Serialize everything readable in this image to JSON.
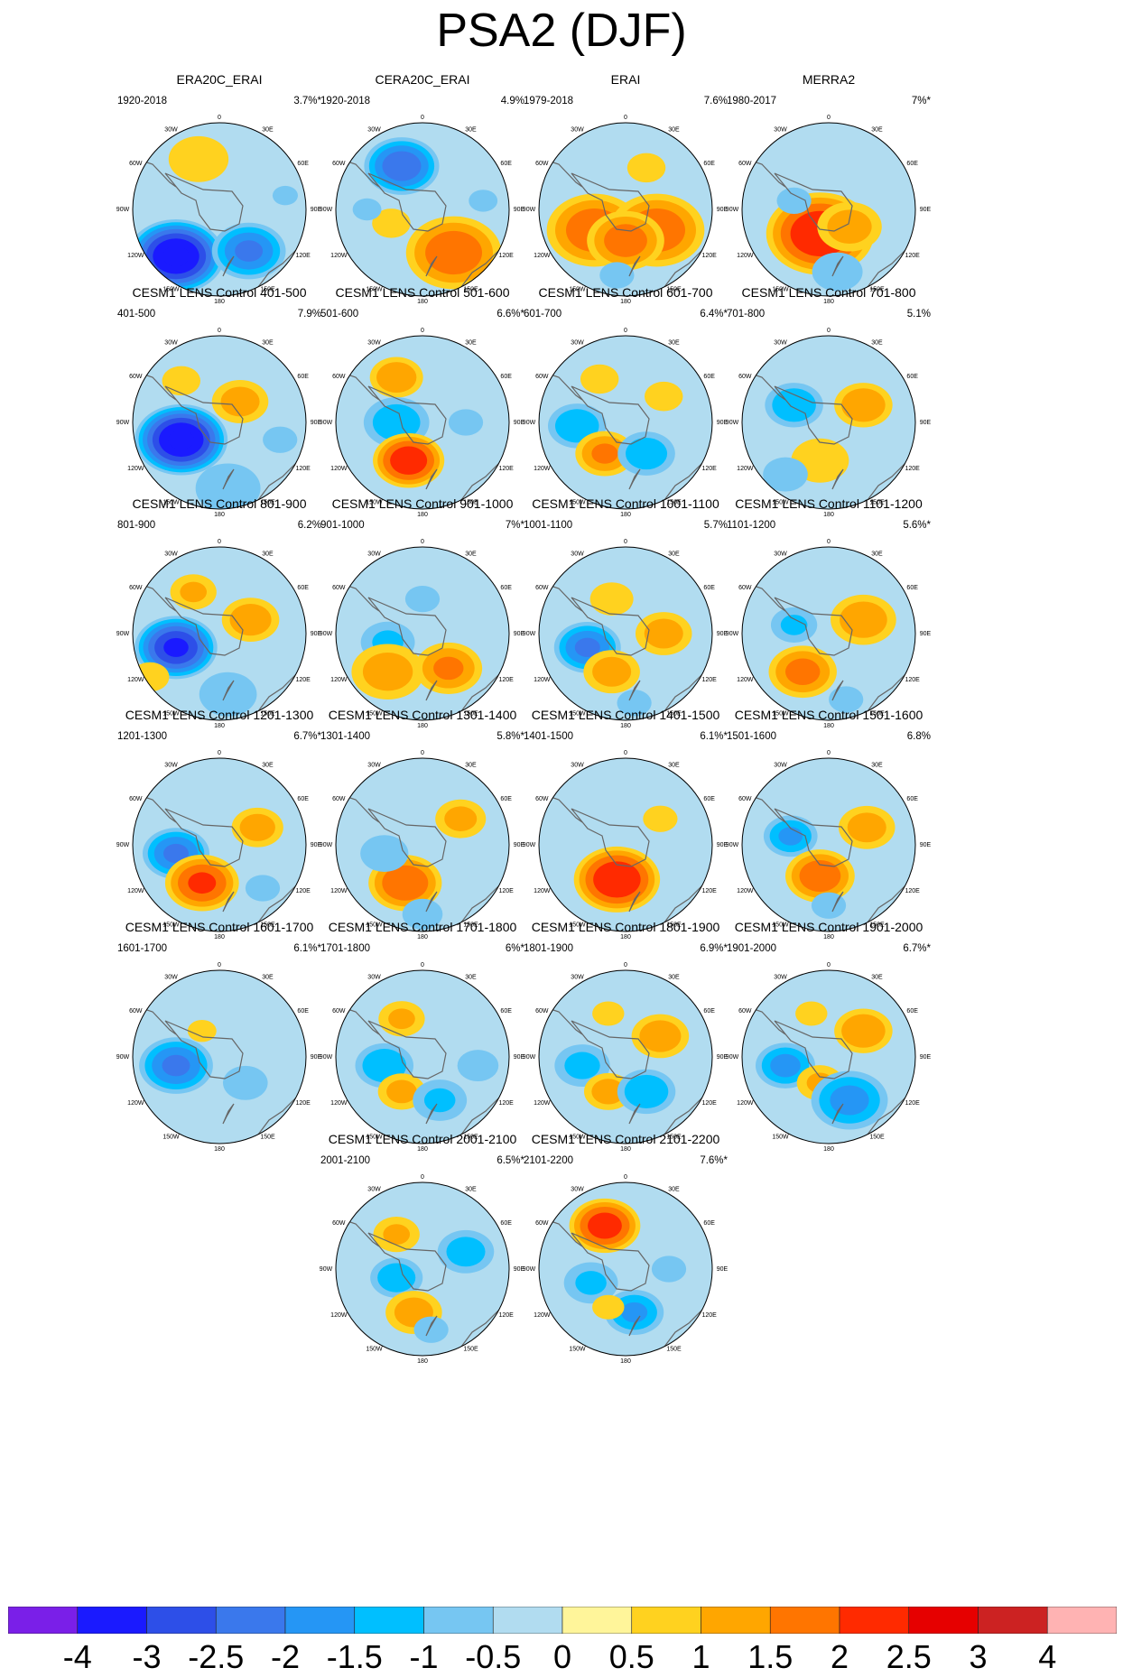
{
  "chart_data": {
    "type": "heatmap",
    "title": "PSA2 (DJF)",
    "projection": "south-polar-stereographic",
    "longitude_labels": [
      "0",
      "30E",
      "60E",
      "90E",
      "120E",
      "150E",
      "180",
      "150W",
      "120W",
      "90W",
      "60W",
      "30W"
    ],
    "colorbar": {
      "levels": [
        "-4",
        "-3",
        "-2.5",
        "-2",
        "-1.5",
        "-1",
        "-0.5",
        "0",
        "0.5",
        "1",
        "1.5",
        "2",
        "2.5",
        "3",
        "4"
      ],
      "colors": [
        "#7a1fe8",
        "#1a1aff",
        "#2d4fe8",
        "#3a78ec",
        "#2596f5",
        "#00bfff",
        "#76c6f2",
        "#b1dcf0",
        "#fff59a",
        "#ffd21f",
        "#ffa600",
        "#ff7500",
        "#ff2a00",
        "#e60000",
        "#cc2222",
        "#ffb3b3"
      ]
    },
    "panels": [
      {
        "title": "ERA20C_ERAI",
        "period": "1920-2018",
        "variance": "3.7%*",
        "centers": [
          [
            0.38,
            0.21,
            0.4,
            0.9
          ],
          [
            0.72,
            0.43,
            0.22,
            0.4
          ],
          [
            0.25,
            0.77,
            0.52,
            -3.5
          ],
          [
            0.67,
            0.74,
            0.42,
            -2.0
          ],
          [
            0.88,
            0.42,
            0.22,
            -0.5
          ]
        ]
      },
      {
        "title": "CERA20C_ERAI",
        "period": "1920-2018",
        "variance": "4.9%",
        "centers": [
          [
            0.38,
            0.25,
            0.42,
            -2.3
          ],
          [
            0.68,
            0.75,
            0.55,
            1.8
          ],
          [
            0.32,
            0.58,
            0.3,
            0.6
          ],
          [
            0.85,
            0.45,
            0.25,
            -0.5
          ],
          [
            0.18,
            0.5,
            0.25,
            -0.5
          ]
        ]
      },
      {
        "title": "ERAI",
        "period": "1979-2018",
        "variance": "7.6%",
        "centers": [
          [
            0.32,
            0.62,
            0.55,
            1.8
          ],
          [
            0.68,
            0.62,
            0.55,
            1.8
          ],
          [
            0.5,
            0.68,
            0.45,
            1.7
          ],
          [
            0.5,
            0.4,
            0.3,
            -0.4
          ],
          [
            0.45,
            0.88,
            0.3,
            -0.5
          ],
          [
            0.62,
            0.26,
            0.3,
            0.6
          ]
        ]
      },
      {
        "title": "MERRA2",
        "period": "1980-2017",
        "variance": "7%*",
        "centers": [
          [
            0.45,
            0.64,
            0.6,
            2.4
          ],
          [
            0.62,
            0.6,
            0.4,
            1.2
          ],
          [
            0.55,
            0.86,
            0.35,
            -0.8
          ],
          [
            0.3,
            0.45,
            0.3,
            -0.5
          ],
          [
            0.72,
            0.3,
            0.3,
            -0.4
          ]
        ]
      },
      {
        "title": "CESM1 LENS Control 401-500",
        "period": "401-500",
        "variance": "7.9%",
        "centers": [
          [
            0.28,
            0.6,
            0.5,
            -3.5
          ],
          [
            0.62,
            0.38,
            0.35,
            1.2
          ],
          [
            0.28,
            0.26,
            0.3,
            0.6
          ],
          [
            0.55,
            0.88,
            0.45,
            -0.8
          ],
          [
            0.85,
            0.6,
            0.3,
            -0.5
          ]
        ]
      },
      {
        "title": "CESM1 LENS Control 501-600",
        "period": "501-600",
        "variance": "6.6%*",
        "centers": [
          [
            0.35,
            0.24,
            0.32,
            1.4
          ],
          [
            0.35,
            0.5,
            0.4,
            -1.3
          ],
          [
            0.42,
            0.72,
            0.4,
            2.3
          ],
          [
            0.75,
            0.5,
            0.3,
            -0.5
          ],
          [
            0.65,
            0.85,
            0.3,
            -0.4
          ]
        ]
      },
      {
        "title": "CESM1 LENS Control 601-700",
        "period": "601-700",
        "variance": "6.4%*",
        "centers": [
          [
            0.22,
            0.52,
            0.35,
            -1.4
          ],
          [
            0.38,
            0.68,
            0.35,
            1.5
          ],
          [
            0.62,
            0.68,
            0.35,
            -1.3
          ],
          [
            0.35,
            0.25,
            0.3,
            0.6
          ],
          [
            0.72,
            0.35,
            0.3,
            0.6
          ]
        ]
      },
      {
        "title": "CESM1 LENS Control 701-800",
        "period": "701-800",
        "variance": "5.1%",
        "centers": [
          [
            0.3,
            0.4,
            0.35,
            -1.4
          ],
          [
            0.7,
            0.4,
            0.35,
            1.4
          ],
          [
            0.45,
            0.72,
            0.4,
            0.8
          ],
          [
            0.25,
            0.8,
            0.35,
            -0.6
          ]
        ]
      },
      {
        "title": "CESM1 LENS Control 801-900",
        "period": "801-900",
        "variance": "6.2%",
        "centers": [
          [
            0.25,
            0.58,
            0.45,
            -3.0
          ],
          [
            0.68,
            0.42,
            0.35,
            1.3
          ],
          [
            0.35,
            0.26,
            0.3,
            1.0
          ],
          [
            0.55,
            0.85,
            0.45,
            -0.6
          ],
          [
            0.1,
            0.75,
            0.3,
            0.6
          ]
        ]
      },
      {
        "title": "CESM1 LENS Control 901-1000",
        "period": "901-1000",
        "variance": "7%*",
        "centers": [
          [
            0.3,
            0.55,
            0.35,
            -1.0
          ],
          [
            0.3,
            0.72,
            0.45,
            1.2
          ],
          [
            0.65,
            0.7,
            0.4,
            1.5
          ],
          [
            0.5,
            0.3,
            0.3,
            -0.5
          ]
        ]
      },
      {
        "title": "CESM1 LENS Control 1001-1100",
        "period": "1001-1100",
        "variance": "5.7%",
        "centers": [
          [
            0.28,
            0.58,
            0.38,
            -2.0
          ],
          [
            0.42,
            0.72,
            0.35,
            1.2
          ],
          [
            0.72,
            0.5,
            0.35,
            1.2
          ],
          [
            0.42,
            0.3,
            0.3,
            0.8
          ],
          [
            0.55,
            0.9,
            0.3,
            -0.5
          ]
        ]
      },
      {
        "title": "CESM1 LENS Control 1101-1200",
        "period": "1101-1200",
        "variance": "5.6%*",
        "centers": [
          [
            0.35,
            0.72,
            0.4,
            1.6
          ],
          [
            0.7,
            0.42,
            0.4,
            1.3
          ],
          [
            0.3,
            0.45,
            0.3,
            -1.0
          ],
          [
            0.6,
            0.88,
            0.3,
            -0.5
          ]
        ]
      },
      {
        "title": "CESM1 LENS Control 1201-1300",
        "period": "1201-1300",
        "variance": "6.7%*",
        "centers": [
          [
            0.25,
            0.55,
            0.38,
            -2.0
          ],
          [
            0.4,
            0.72,
            0.42,
            2.0
          ],
          [
            0.72,
            0.4,
            0.32,
            1.2
          ],
          [
            0.75,
            0.75,
            0.3,
            -0.5
          ]
        ]
      },
      {
        "title": "CESM1 LENS Control 1301-1400",
        "period": "1301-1400",
        "variance": "5.8%*",
        "centers": [
          [
            0.4,
            0.72,
            0.42,
            1.9
          ],
          [
            0.72,
            0.35,
            0.32,
            1.1
          ],
          [
            0.28,
            0.55,
            0.35,
            -0.7
          ],
          [
            0.5,
            0.9,
            0.35,
            -0.5
          ]
        ]
      },
      {
        "title": "CESM1 LENS Control 1401-1500",
        "period": "1401-1500",
        "variance": "6.1%*",
        "centers": [
          [
            0.45,
            0.7,
            0.48,
            2.4
          ],
          [
            0.4,
            0.45,
            0.3,
            -0.4
          ],
          [
            0.7,
            0.35,
            0.3,
            0.5
          ],
          [
            0.55,
            0.9,
            0.3,
            -0.4
          ]
        ]
      },
      {
        "title": "CESM1 LENS Control 1501-1600",
        "period": "1501-1600",
        "variance": "6.8%",
        "centers": [
          [
            0.28,
            0.45,
            0.32,
            -1.5
          ],
          [
            0.45,
            0.68,
            0.4,
            1.8
          ],
          [
            0.72,
            0.4,
            0.35,
            1.2
          ],
          [
            0.5,
            0.85,
            0.3,
            -0.5
          ]
        ]
      },
      {
        "title": "CESM1 LENS Control 1601-1700",
        "period": "1601-1700",
        "variance": "6.1%*",
        "centers": [
          [
            0.25,
            0.55,
            0.42,
            -2.0
          ],
          [
            0.4,
            0.35,
            0.25,
            0.5
          ],
          [
            0.65,
            0.65,
            0.35,
            -0.6
          ],
          [
            0.8,
            0.3,
            0.3,
            -0.4
          ]
        ]
      },
      {
        "title": "CESM1 LENS Control 1701-1800",
        "period": "1701-1800",
        "variance": "6%*",
        "centers": [
          [
            0.28,
            0.55,
            0.35,
            -1.4
          ],
          [
            0.38,
            0.7,
            0.3,
            1.1
          ],
          [
            0.6,
            0.75,
            0.35,
            -1.0
          ],
          [
            0.38,
            0.28,
            0.3,
            1.0
          ],
          [
            0.82,
            0.55,
            0.3,
            -0.7
          ]
        ]
      },
      {
        "title": "CESM1 LENS Control 1801-1900",
        "period": "1801-1900",
        "variance": "6.9%*",
        "centers": [
          [
            0.25,
            0.55,
            0.35,
            -1.1
          ],
          [
            0.4,
            0.7,
            0.3,
            1.2
          ],
          [
            0.62,
            0.7,
            0.35,
            -1.4
          ],
          [
            0.7,
            0.38,
            0.35,
            1.3
          ],
          [
            0.4,
            0.25,
            0.25,
            0.6
          ]
        ]
      },
      {
        "title": "CESM1 LENS Control 1901-2000",
        "period": "1901-2000",
        "variance": "6.7%*",
        "centers": [
          [
            0.25,
            0.55,
            0.35,
            -1.6
          ],
          [
            0.45,
            0.65,
            0.3,
            1.0
          ],
          [
            0.62,
            0.75,
            0.45,
            -1.6
          ],
          [
            0.7,
            0.35,
            0.35,
            1.4
          ],
          [
            0.4,
            0.25,
            0.25,
            0.6
          ]
        ]
      },
      {
        "title": "CESM1 LENS Control 2001-2100",
        "period": "2001-2100",
        "variance": "6.5%*",
        "centers": [
          [
            0.35,
            0.55,
            0.32,
            -1.3
          ],
          [
            0.45,
            0.75,
            0.35,
            1.2
          ],
          [
            0.75,
            0.4,
            0.35,
            -1.2
          ],
          [
            0.35,
            0.3,
            0.3,
            1.0
          ],
          [
            0.55,
            0.85,
            0.3,
            -0.5
          ]
        ]
      },
      {
        "title": "CESM1 LENS Control 2101-2200",
        "period": "2101-2200",
        "variance": "7.6%*",
        "centers": [
          [
            0.38,
            0.25,
            0.4,
            2.2
          ],
          [
            0.3,
            0.58,
            0.35,
            -1.0
          ],
          [
            0.55,
            0.75,
            0.35,
            -1.5
          ],
          [
            0.4,
            0.72,
            0.25,
            0.6
          ],
          [
            0.75,
            0.5,
            0.3,
            -0.5
          ]
        ]
      }
    ]
  }
}
